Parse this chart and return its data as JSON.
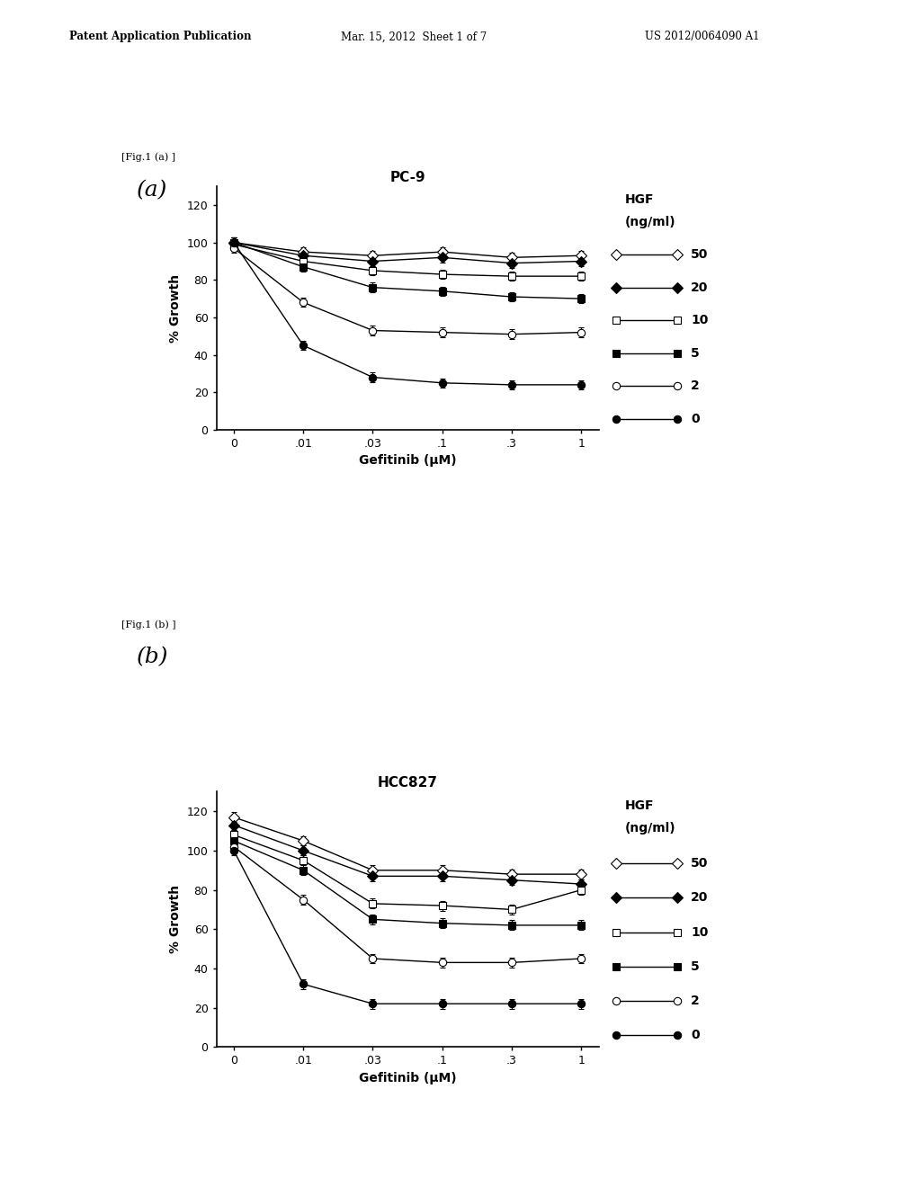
{
  "header_left": "Patent Application Publication",
  "header_mid": "Mar. 15, 2012  Sheet 1 of 7",
  "header_right": "US 2012/0064090 A1",
  "fig_label_a": "[Fig.1 (a) ]",
  "fig_label_b": "[Fig.1 (b) ]",
  "panel_a_label": "(a)",
  "panel_b_label": "(b)",
  "title_a": "PC-9",
  "title_b": "HCC827",
  "xlabel": "Gefitinib (μM)",
  "ylabel": "% Growth",
  "legend_title": "HGF\n(ng/ml)",
  "legend_labels": [
    "50",
    "20",
    "10",
    "5",
    "2",
    "0"
  ],
  "x_tick_labels": [
    "0",
    ".01",
    ".03",
    ".1",
    ".3",
    "1"
  ],
  "ylim": [
    0,
    130
  ],
  "yticks": [
    0,
    20,
    40,
    60,
    80,
    100,
    120
  ],
  "panel_a": {
    "hgf50": [
      100,
      95,
      93,
      95,
      92,
      93
    ],
    "hgf20": [
      100,
      93,
      90,
      92,
      89,
      90
    ],
    "hgf10": [
      99,
      90,
      85,
      83,
      82,
      82
    ],
    "hgf5": [
      100,
      87,
      76,
      74,
      71,
      70
    ],
    "hgf2": [
      97,
      68,
      53,
      52,
      51,
      52
    ],
    "hgf0": [
      100,
      45,
      28,
      25,
      24,
      24
    ]
  },
  "panel_b": {
    "hgf50": [
      117,
      105,
      90,
      90,
      88,
      88
    ],
    "hgf20": [
      113,
      100,
      87,
      87,
      85,
      83
    ],
    "hgf10": [
      108,
      95,
      73,
      72,
      70,
      80
    ],
    "hgf5": [
      105,
      90,
      65,
      63,
      62,
      62
    ],
    "hgf2": [
      102,
      75,
      45,
      43,
      43,
      45
    ],
    "hgf0": [
      100,
      32,
      22,
      22,
      22,
      22
    ]
  },
  "background_color": "#ffffff"
}
